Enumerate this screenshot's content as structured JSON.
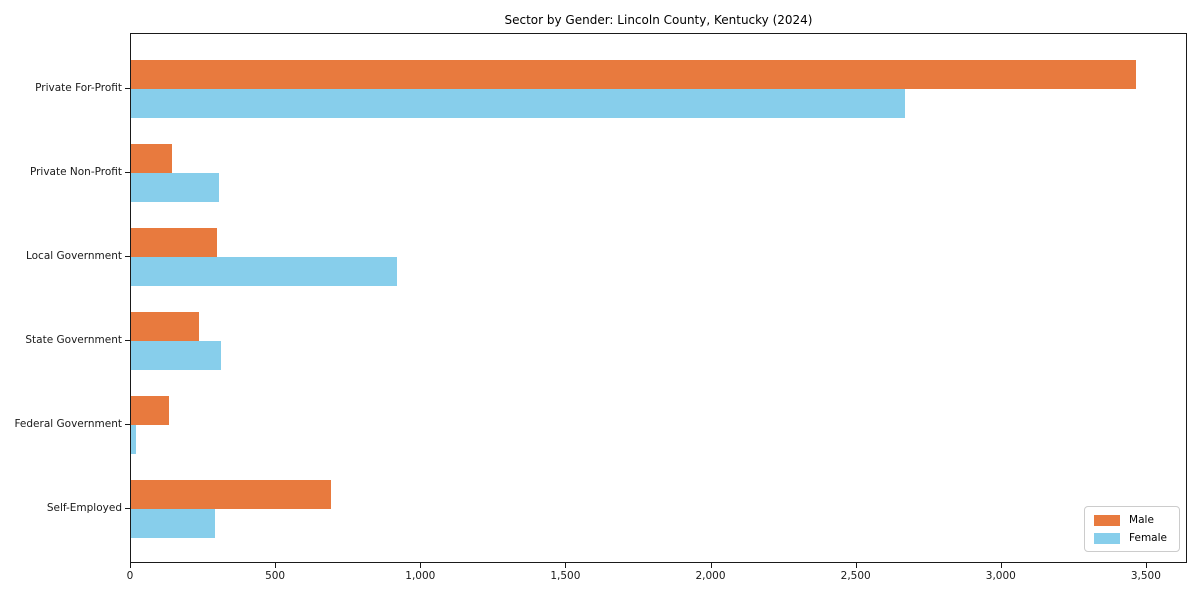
{
  "chart_data": {
    "type": "bar",
    "orientation": "horizontal",
    "title": "Sector by Gender: Lincoln County, Kentucky (2024)",
    "categories": [
      "Private For-Profit",
      "Private Non-Profit",
      "Local Government",
      "State Government",
      "Federal Government",
      "Self-Employed"
    ],
    "series": [
      {
        "name": "Male",
        "color": "#e87a3e",
        "values": [
          3462,
          142,
          295,
          234,
          131,
          690
        ]
      },
      {
        "name": "Female",
        "color": "#87ceeb",
        "values": [
          2666,
          303,
          917,
          311,
          16,
          289
        ]
      }
    ],
    "xlabel": "",
    "ylabel": "",
    "xlim": [
      0,
      3638
    ],
    "x_ticks": [
      0,
      500,
      1000,
      1500,
      2000,
      2500,
      3000,
      3500
    ],
    "x_tick_labels": [
      "0",
      "500",
      "1,000",
      "1,500",
      "2,000",
      "2,500",
      "3,000",
      "3,500"
    ],
    "grid": false,
    "legend_position": "lower right",
    "colors": {
      "male": "#e87a3e",
      "female": "#87ceeb",
      "spine": "#1a1a1a",
      "legend_border": "#cccccc"
    }
  }
}
